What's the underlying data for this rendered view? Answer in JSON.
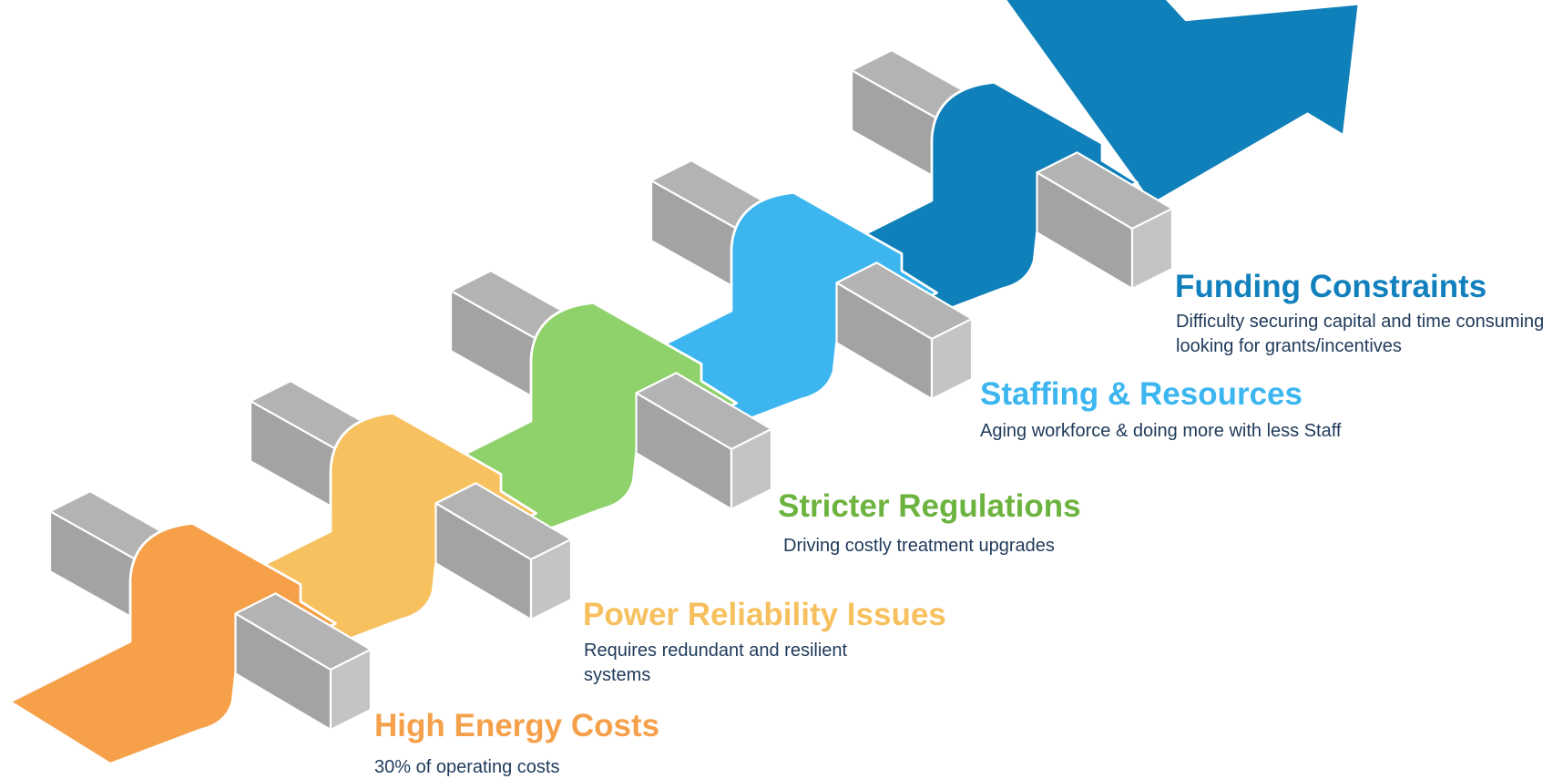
{
  "items": [
    {
      "title": "High Energy Costs",
      "description": "30% of operating costs"
    },
    {
      "title": "Power Reliability Issues",
      "description": "Requires redundant and resilient systems"
    },
    {
      "title": "Stricter Regulations",
      "description": "Driving costly treatment upgrades"
    },
    {
      "title": "Staffing & Resources",
      "description": "Aging workforce & doing more with less Staff"
    },
    {
      "title": "Funding Constraints",
      "description": "Difficulty securing capital and time consuming looking for grants/incentives"
    }
  ]
}
